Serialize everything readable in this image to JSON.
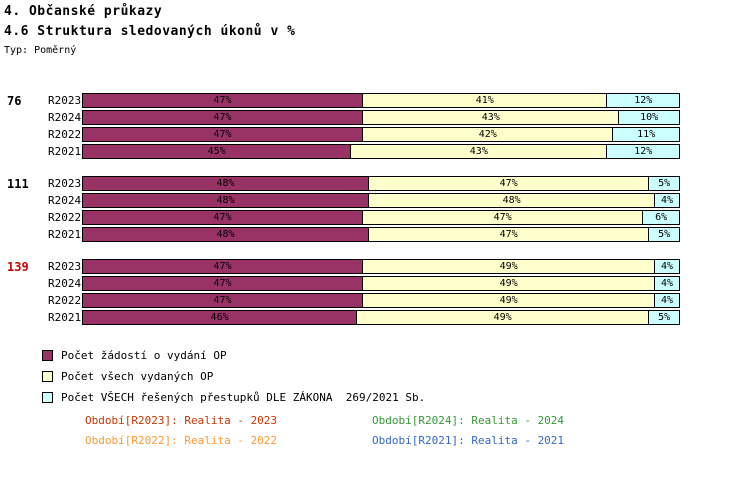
{
  "header": {
    "title": "4. Občanské průkazy",
    "subtitle": "4.6 Struktura sledovaných úkonů v %",
    "type_label": "Typ: Poměrný"
  },
  "chart_data": {
    "type": "bar",
    "orientation": "horizontal",
    "stacked": true,
    "unit": "%",
    "xlim": [
      0,
      100
    ],
    "title": "4.6 Struktura sledovaných úkonů v %",
    "series_names": [
      "Počet žádostí o vydání OP",
      "Počet všech vydaných OP",
      "Počet VŠECH řešených přestupků DLE ZÁKONA  269/2021 Sb."
    ],
    "series_colors": [
      "#993366",
      "#FFFFCC",
      "#CCFFFF"
    ],
    "groups": [
      {
        "label": "76",
        "highlight": false,
        "rows": [
          {
            "label": "R2023",
            "values": [
              47,
              41,
              12
            ]
          },
          {
            "label": "R2024",
            "values": [
              47,
              43,
              10
            ]
          },
          {
            "label": "R2022",
            "values": [
              47,
              42,
              11
            ]
          },
          {
            "label": "R2021",
            "values": [
              45,
              43,
              12
            ]
          }
        ]
      },
      {
        "label": "111",
        "highlight": false,
        "rows": [
          {
            "label": "R2023",
            "values": [
              48,
              47,
              5
            ]
          },
          {
            "label": "R2024",
            "values": [
              48,
              48,
              4
            ]
          },
          {
            "label": "R2022",
            "values": [
              47,
              47,
              6
            ]
          },
          {
            "label": "R2021",
            "values": [
              48,
              47,
              5
            ]
          }
        ]
      },
      {
        "label": "139",
        "highlight": true,
        "rows": [
          {
            "label": "R2023",
            "values": [
              47,
              49,
              4
            ]
          },
          {
            "label": "R2024",
            "values": [
              47,
              49,
              4
            ]
          },
          {
            "label": "R2022",
            "values": [
              47,
              49,
              4
            ]
          },
          {
            "label": "R2021",
            "values": [
              46,
              49,
              5
            ]
          }
        ]
      }
    ]
  },
  "legend": [
    {
      "label": "Počet žádostí o vydání OP",
      "color": "#993366"
    },
    {
      "label": "Počet všech vydaných OP",
      "color": "#FFFFCC"
    },
    {
      "label": "Počet VŠECH řešených přestupků DLE ZÁKONA  269/2021 Sb.",
      "color": "#CCFFFF"
    }
  ],
  "footnotes": [
    {
      "text": "Období[R2023]: Realita - 2023",
      "color": "#CC3300"
    },
    {
      "text": "Období[R2024]: Realita - 2024",
      "color": "#339933"
    },
    {
      "text": "Období[R2022]: Realita - 2022",
      "color": "#FF9933"
    },
    {
      "text": "Období[R2021]: Realita - 2021",
      "color": "#3366CC"
    }
  ],
  "colors": {
    "group_label_highlight": "#CC0000",
    "bar_border": "#000000"
  }
}
